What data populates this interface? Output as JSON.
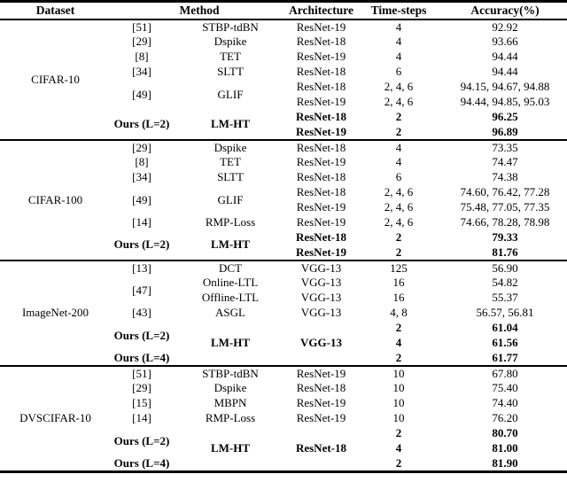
{
  "header": {
    "dataset": "Dataset",
    "method": "Method",
    "architecture": "Architecture",
    "timesteps": "Time-steps",
    "accuracy": "Accuracy(%)"
  },
  "sections": [
    {
      "dataset": "CIFAR-10",
      "rows": [
        {
          "ref": "[51]",
          "method": "STBP-tdBN",
          "arch": "ResNet-19",
          "t": "4",
          "acc": "92.92"
        },
        {
          "ref": "[29]",
          "method": "Dspike",
          "arch": "ResNet-18",
          "t": "4",
          "acc": "93.66"
        },
        {
          "ref": "[8]",
          "method": "TET",
          "arch": "ResNet-19",
          "t": "4",
          "acc": "94.44"
        },
        {
          "ref": "[34]",
          "method": "SLTT",
          "arch": "ResNet-18",
          "t": "6",
          "acc": "94.44"
        },
        {
          "ref": "[49]",
          "method": "GLIF",
          "arch": "ResNet-18",
          "t": "2, 4, 6",
          "acc": "94.15, 94.67, 94.88"
        },
        {
          "arch": "ResNet-19",
          "t": "2, 4, 6",
          "acc": "94.44, 94.85, 95.03"
        },
        {
          "ref": "Ours (L=2)",
          "method": "LM-HT",
          "arch": "ResNet-18",
          "t": "2",
          "acc": "96.25"
        },
        {
          "arch": "ResNet-19",
          "t": "2",
          "acc": "96.89"
        }
      ]
    },
    {
      "dataset": "CIFAR-100",
      "rows": [
        {
          "ref": "[29]",
          "method": "Dspike",
          "arch": "ResNet-18",
          "t": "4",
          "acc": "73.35"
        },
        {
          "ref": "[8]",
          "method": "TET",
          "arch": "ResNet-19",
          "t": "4",
          "acc": "74.47"
        },
        {
          "ref": "[34]",
          "method": "SLTT",
          "arch": "ResNet-18",
          "t": "6",
          "acc": "74.38"
        },
        {
          "ref": "[49]",
          "method": "GLIF",
          "arch": "ResNet-18",
          "t": "2, 4, 6",
          "acc": "74.60, 76.42, 77.28"
        },
        {
          "arch": "ResNet-19",
          "t": "2, 4, 6",
          "acc": "75.48, 77.05, 77.35"
        },
        {
          "ref": "[14]",
          "method": "RMP-Loss",
          "arch": "ResNet-19",
          "t": "2, 4, 6",
          "acc": "74.66, 78.28, 78.98"
        },
        {
          "ref": "Ours (L=2)",
          "method": "LM-HT",
          "arch": "ResNet-18",
          "t": "2",
          "acc": "79.33"
        },
        {
          "arch": "ResNet-19",
          "t": "2",
          "acc": "81.76"
        }
      ]
    },
    {
      "dataset": "ImageNet-200",
      "rows": [
        {
          "ref": "[13]",
          "method": "DCT",
          "arch": "VGG-13",
          "t": "125",
          "acc": "56.90"
        },
        {
          "ref": "[47]",
          "method": "Online-LTL",
          "arch": "VGG-13",
          "t": "16",
          "acc": "54.82"
        },
        {
          "method": "Offline-LTL",
          "arch": "VGG-13",
          "t": "16",
          "acc": "55.37"
        },
        {
          "ref": "[43]",
          "method": "ASGL",
          "arch": "VGG-13",
          "t": "4, 8",
          "acc": "56.57, 56.81"
        },
        {
          "ref": "Ours (L=2)",
          "method": "LM-HT",
          "arch": "VGG-13",
          "t": "2",
          "acc": "61.04"
        },
        {
          "t": "4",
          "acc": "61.56"
        },
        {
          "ref": "Ours (L=4)",
          "t": "2",
          "acc": "61.77"
        }
      ]
    },
    {
      "dataset": "DVSCIFAR-10",
      "rows": [
        {
          "ref": "[51]",
          "method": "STBP-tdBN",
          "arch": "ResNet-19",
          "t": "10",
          "acc": "67.80"
        },
        {
          "ref": "[29]",
          "method": "Dspike",
          "arch": "ResNet-18",
          "t": "10",
          "acc": "75.40"
        },
        {
          "ref": "[15]",
          "method": "MBPN",
          "arch": "ResNet-19",
          "t": "10",
          "acc": "74.40"
        },
        {
          "ref": "[14]",
          "method": "RMP-Loss",
          "arch": "ResNet-19",
          "t": "10",
          "acc": "76.20"
        },
        {
          "ref": "Ours (L=2)",
          "method": "LM-HT",
          "arch": "ResNet-18",
          "t": "2",
          "acc": "80.70"
        },
        {
          "t": "4",
          "acc": "81.00"
        },
        {
          "ref": "Ours (L=4)",
          "t": "2",
          "acc": "81.90"
        }
      ]
    }
  ]
}
